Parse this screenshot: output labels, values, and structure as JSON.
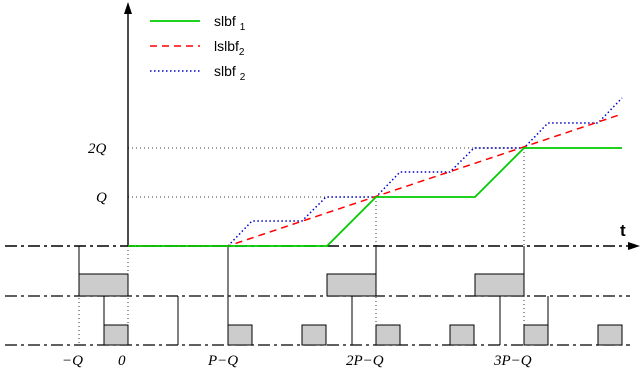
{
  "legend": {
    "items": [
      {
        "base": "slbf ",
        "sub": "1",
        "color": "#00cc00",
        "dash": ""
      },
      {
        "base": "lslbf",
        "sub": "2",
        "color": "#ff0000",
        "dash": "7,5"
      },
      {
        "base": "slbf ",
        "sub": "2",
        "color": "#0000cc",
        "dash": "1.5,2.5"
      }
    ]
  },
  "y_labels": {
    "two_q": "2Q",
    "q": "Q"
  },
  "t_label": "t",
  "x_labels": {
    "neg_q": "−Q",
    "zero": "0",
    "p_minus_q": "P−Q",
    "two_p_minus_q": "2P−Q",
    "three_p_minus_q": "3P−Q"
  },
  "colors": {
    "slbf1": "#00cc00",
    "lslbf2": "#ff0000",
    "slbf2": "#0000cc",
    "block": "#cccccc"
  }
}
